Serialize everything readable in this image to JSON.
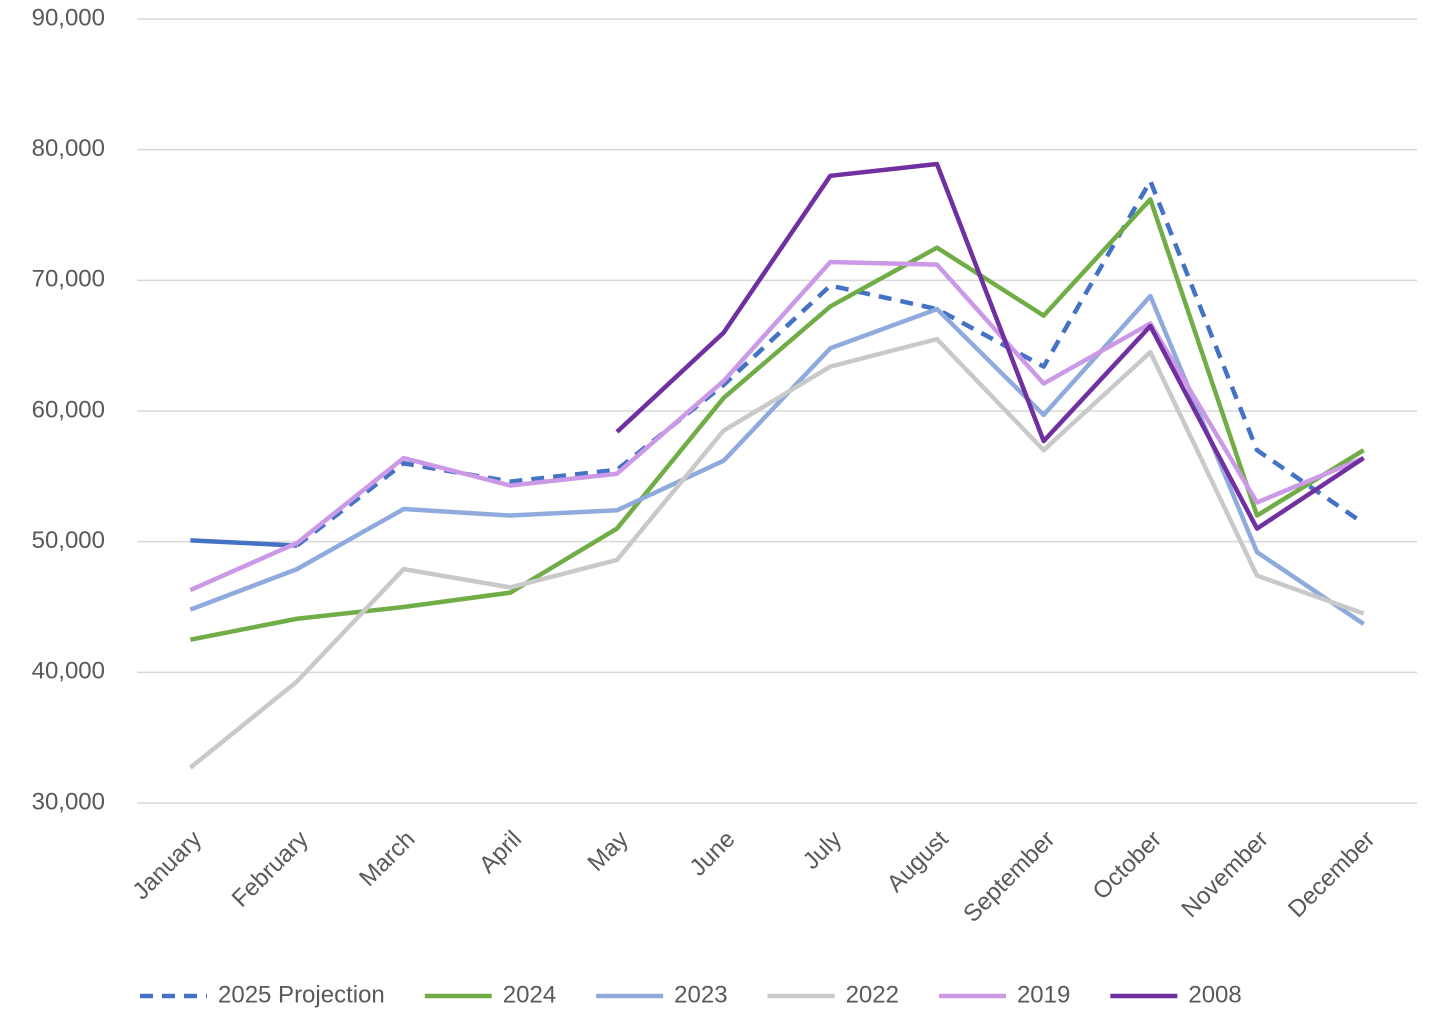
{
  "chart_data": {
    "type": "line",
    "categories": [
      "January",
      "February",
      "March",
      "April",
      "May",
      "June",
      "July",
      "August",
      "September",
      "October",
      "November",
      "December"
    ],
    "series": [
      {
        "name": "2025 Projection",
        "color": "#4472c4",
        "dashed": true,
        "solid_through": 1,
        "values": [
          50100,
          49700,
          56000,
          54600,
          55500,
          62000,
          69600,
          67800,
          63400,
          77600,
          57000,
          51400
        ]
      },
      {
        "name": "2024",
        "color": "#70ad47",
        "values": [
          42500,
          44100,
          45000,
          46100,
          51000,
          61000,
          68000,
          72500,
          67300,
          76200,
          52000,
          57000
        ]
      },
      {
        "name": "2023",
        "color": "#8faadc",
        "values": [
          44800,
          47900,
          52500,
          52000,
          52400,
          56200,
          64800,
          67800,
          59700,
          68800,
          49200,
          43700
        ]
      },
      {
        "name": "2022",
        "color": "#c9c9c9",
        "values": [
          32700,
          39300,
          47900,
          46500,
          48600,
          58500,
          63400,
          65500,
          57000,
          64500,
          47400,
          44500
        ]
      },
      {
        "name": "2019",
        "color": "#cc99e6",
        "values": [
          46300,
          49900,
          56400,
          54300,
          55200,
          62300,
          71400,
          71200,
          62100,
          66700,
          53000,
          56400
        ]
      },
      {
        "name": "2008",
        "color": "#7030a0",
        "values": [
          null,
          null,
          null,
          null,
          58400,
          66000,
          78000,
          78900,
          57700,
          66500,
          51000,
          56400
        ]
      }
    ],
    "ylim": [
      30000,
      90000
    ],
    "yticks": [
      {
        "value": 30000,
        "label": "30,000"
      },
      {
        "value": 40000,
        "label": "40,000"
      },
      {
        "value": 50000,
        "label": "50,000"
      },
      {
        "value": 60000,
        "label": "60,000"
      },
      {
        "value": 70000,
        "label": "70,000"
      },
      {
        "value": 80000,
        "label": "80,000"
      },
      {
        "value": 90000,
        "label": "90,000"
      }
    ],
    "grid": true,
    "legend": "bottom"
  }
}
